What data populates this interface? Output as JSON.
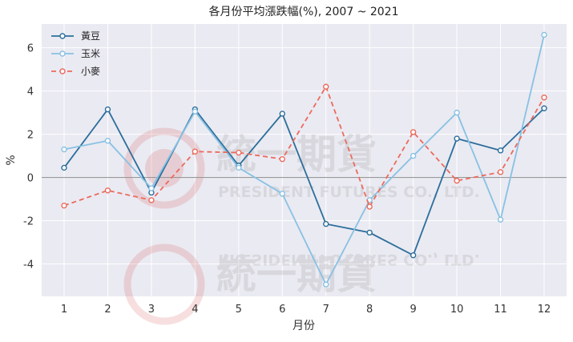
{
  "chart_data": {
    "type": "line",
    "title": "各月份平均漲跌幅(%), 2007 ~ 2021",
    "xlabel": "月份",
    "ylabel": "%",
    "x": [
      1,
      2,
      3,
      4,
      5,
      6,
      7,
      8,
      9,
      10,
      11,
      12
    ],
    "ylim": [
      -5.5,
      7.1
    ],
    "yticks": [
      -4,
      -2,
      0,
      2,
      4,
      6
    ],
    "grid": true,
    "legend_position": "top-left",
    "series": [
      {
        "name": "黃豆",
        "color": "#2c6e9b",
        "dash": "solid",
        "values": [
          0.45,
          3.15,
          -0.7,
          3.15,
          0.55,
          2.95,
          -2.15,
          -2.55,
          -3.6,
          1.8,
          1.25,
          3.2
        ]
      },
      {
        "name": "玉米",
        "color": "#88c1e3",
        "dash": "solid",
        "values": [
          1.3,
          1.7,
          -0.5,
          3.05,
          0.45,
          -0.75,
          -4.95,
          -1.05,
          1.0,
          3.0,
          -1.95,
          6.6
        ]
      },
      {
        "name": "小麥",
        "color": "#ec6a5c",
        "dash": "dashed",
        "values": [
          -1.3,
          -0.6,
          -1.05,
          1.2,
          1.15,
          0.85,
          4.2,
          -1.35,
          2.1,
          -0.15,
          0.25,
          3.7
        ]
      }
    ],
    "watermark": {
      "text_cn": "統一期貨",
      "text_en": "PRESIDENT FUTURES CO., LTD."
    }
  }
}
